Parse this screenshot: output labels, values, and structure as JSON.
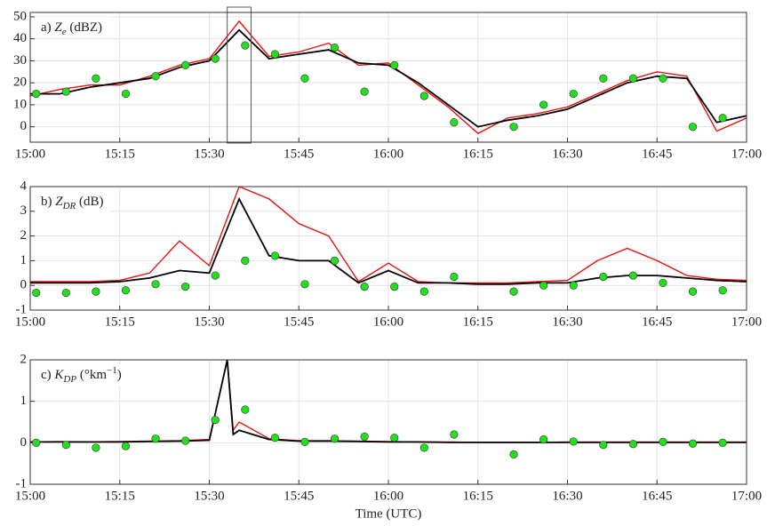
{
  "chart_data": [
    {
      "type": "line",
      "label_parts": [
        {
          "text": "a) "
        },
        {
          "text": "Z",
          "style": "italic"
        },
        {
          "text": "e",
          "style": "sub"
        },
        {
          "text": " (dBZ)"
        }
      ],
      "x": [
        "15:00",
        "15:05",
        "15:10",
        "15:15",
        "15:20",
        "15:25",
        "15:30",
        "15:35",
        "15:40",
        "15:45",
        "15:50",
        "15:55",
        "16:00",
        "16:05",
        "16:10",
        "16:15",
        "16:20",
        "16:25",
        "16:30",
        "16:35",
        "16:40",
        "16:45",
        "16:50",
        "16:55",
        "17:00"
      ],
      "series": [
        {
          "color": "#e8130f",
          "values": [
            14,
            17,
            19,
            19,
            23,
            28,
            31,
            48,
            32,
            34,
            38,
            28,
            29,
            19,
            9,
            -3,
            4,
            6,
            9,
            15,
            21,
            25,
            23,
            -2,
            4
          ]
        },
        {
          "color": "#000000",
          "values": [
            15,
            15,
            18,
            20,
            22,
            27,
            30,
            44,
            31,
            33,
            35,
            29,
            28,
            20,
            10,
            0,
            3,
            5,
            8,
            14,
            20,
            23,
            22,
            2,
            5
          ]
        }
      ],
      "points": {
        "color": "#22e01e",
        "x": [
          "15:01",
          "15:06",
          "15:11",
          "15:16",
          "15:21",
          "15:26",
          "15:31",
          "15:36",
          "15:41",
          "15:46",
          "15:51",
          "15:56",
          "16:01",
          "16:06",
          "16:11",
          "16:21",
          "16:26",
          "16:31",
          "16:36",
          "16:41",
          "16:46",
          "16:51",
          "16:56"
        ],
        "values": [
          15,
          16,
          22,
          15,
          23,
          28,
          31,
          37,
          33,
          22,
          36,
          16,
          28,
          14,
          2,
          0,
          10,
          15,
          22,
          22,
          22,
          0,
          4
        ]
      },
      "box": {
        "x": [
          "15:33",
          "15:37"
        ]
      },
      "xlim": [
        "15:00",
        "17:00"
      ],
      "xticks": [
        "15:00",
        "15:15",
        "15:30",
        "15:45",
        "16:00",
        "16:15",
        "16:30",
        "16:45",
        "17:00"
      ],
      "ylim": [
        -7,
        52
      ],
      "yticks": [
        0,
        10,
        20,
        30,
        40,
        50
      ],
      "grid": true
    },
    {
      "type": "line",
      "label_parts": [
        {
          "text": "b) "
        },
        {
          "text": "Z",
          "style": "italic"
        },
        {
          "text": "DR",
          "style": "sub"
        },
        {
          "text": " (dB)"
        }
      ],
      "x": [
        "15:00",
        "15:05",
        "15:10",
        "15:15",
        "15:20",
        "15:25",
        "15:30",
        "15:35",
        "15:40",
        "15:45",
        "15:50",
        "15:55",
        "16:00",
        "16:05",
        "16:10",
        "16:15",
        "16:20",
        "16:25",
        "16:30",
        "16:35",
        "16:40",
        "16:45",
        "16:50",
        "16:55",
        "17:00"
      ],
      "series": [
        {
          "color": "#e8130f",
          "values": [
            0.15,
            0.15,
            0.15,
            0.2,
            0.5,
            1.8,
            0.8,
            4,
            3.5,
            2.5,
            2.0,
            0.15,
            0.9,
            0.15,
            0.1,
            0.1,
            0.1,
            0.15,
            0.2,
            1.0,
            1.5,
            1.0,
            0.4,
            0.25,
            0.2
          ]
        },
        {
          "color": "#000000",
          "values": [
            0.1,
            0.1,
            0.1,
            0.15,
            0.3,
            0.6,
            0.5,
            3.5,
            1.2,
            1.0,
            1.0,
            0.1,
            0.6,
            0.1,
            0.1,
            0.05,
            0.05,
            0.1,
            0.1,
            0.3,
            0.4,
            0.4,
            0.3,
            0.2,
            0.15
          ]
        }
      ],
      "points": {
        "color": "#22e01e",
        "x": [
          "15:01",
          "15:06",
          "15:11",
          "15:16",
          "15:21",
          "15:26",
          "15:31",
          "15:36",
          "15:41",
          "15:46",
          "15:51",
          "15:56",
          "16:01",
          "16:06",
          "16:11",
          "16:21",
          "16:26",
          "16:31",
          "16:36",
          "16:41",
          "16:46",
          "16:51",
          "16:56"
        ],
        "values": [
          -0.3,
          -0.3,
          -0.25,
          -0.2,
          0.05,
          -0.05,
          0.4,
          1.0,
          1.2,
          0.05,
          1.0,
          -0.05,
          -0.05,
          -0.25,
          0.35,
          -0.25,
          0,
          0,
          0.35,
          0.4,
          0.1,
          -0.25,
          -0.2
        ]
      },
      "xlim": [
        "15:00",
        "17:00"
      ],
      "xticks": [
        "15:00",
        "15:15",
        "15:30",
        "15:45",
        "16:00",
        "16:15",
        "16:30",
        "16:45",
        "17:00"
      ],
      "ylim": [
        -1,
        4
      ],
      "yticks": [
        -1,
        0,
        1,
        2,
        3,
        4
      ],
      "grid": true
    },
    {
      "type": "line",
      "label_parts": [
        {
          "text": "c) "
        },
        {
          "text": "K",
          "style": "italic"
        },
        {
          "text": "DP",
          "style": "sub"
        },
        {
          "text": " (°km"
        },
        {
          "text": "−1",
          "style": "sup"
        },
        {
          "text": ")"
        }
      ],
      "x": [
        "15:00",
        "15:05",
        "15:10",
        "15:15",
        "15:20",
        "15:25",
        "15:30",
        "15:33",
        "15:34",
        "15:35",
        "15:40",
        "15:45",
        "15:50",
        "15:55",
        "16:00",
        "16:05",
        "16:10",
        "16:15",
        "16:20",
        "16:25",
        "16:30",
        "16:35",
        "16:40",
        "16:45",
        "16:50",
        "16:55",
        "17:00"
      ],
      "series": [
        {
          "color": "#e8130f",
          "values": [
            0.02,
            0.03,
            0.02,
            0.03,
            0.04,
            0.05,
            0.08,
            2,
            0.3,
            0.5,
            0.1,
            0.05,
            0.05,
            0.04,
            0.03,
            0.02,
            0.02,
            0.01,
            0.01,
            0.01,
            0.02,
            0.02,
            0.02,
            0.02,
            0.02,
            0.02,
            0.02
          ]
        },
        {
          "color": "#000000",
          "values": [
            0.02,
            0.02,
            0.02,
            0.02,
            0.03,
            0.04,
            0.06,
            2,
            0.2,
            0.3,
            0.08,
            0.04,
            0.04,
            0.03,
            0.02,
            0.02,
            0.01,
            0.01,
            0.01,
            0.01,
            0.01,
            0.01,
            0.01,
            0.01,
            0.01,
            0.01,
            0.01
          ]
        }
      ],
      "points": {
        "color": "#22e01e",
        "x": [
          "15:01",
          "15:06",
          "15:11",
          "15:16",
          "15:21",
          "15:26",
          "15:31",
          "15:36",
          "15:41",
          "15:46",
          "15:51",
          "15:56",
          "16:01",
          "16:06",
          "16:11",
          "16:21",
          "16:26",
          "16:31",
          "16:36",
          "16:41",
          "16:46",
          "16:51",
          "16:56"
        ],
        "values": [
          0,
          -0.05,
          -0.12,
          -0.08,
          0.1,
          0.05,
          0.55,
          0.8,
          0.12,
          0.02,
          0.1,
          0.15,
          0.12,
          -0.12,
          0.2,
          -0.28,
          0.08,
          0.03,
          -0.05,
          -0.03,
          0.02,
          -0.02,
          0
        ]
      },
      "xlim": [
        "15:00",
        "17:00"
      ],
      "xticks": [
        "15:00",
        "15:15",
        "15:30",
        "15:45",
        "16:00",
        "16:15",
        "16:30",
        "16:45",
        "17:00"
      ],
      "xlabel": "Time (UTC)",
      "ylim": [
        -1,
        2
      ],
      "yticks": [
        -1,
        0,
        1,
        2
      ],
      "grid": true
    }
  ]
}
